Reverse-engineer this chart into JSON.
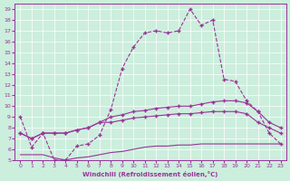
{
  "xlabel": "Windchill (Refroidissement éolien,°C)",
  "bg_color": "#cceedd",
  "line_color": "#993399",
  "xlim": [
    -0.5,
    23.5
  ],
  "ylim": [
    5,
    19.5
  ],
  "xticks": [
    0,
    1,
    2,
    3,
    4,
    5,
    6,
    7,
    8,
    9,
    10,
    11,
    12,
    13,
    14,
    15,
    16,
    17,
    18,
    19,
    20,
    21,
    22,
    23
  ],
  "yticks": [
    5,
    6,
    7,
    8,
    9,
    10,
    11,
    12,
    13,
    14,
    15,
    16,
    17,
    18,
    19
  ],
  "line_main_x": [
    0,
    1,
    2,
    3,
    4,
    5,
    6,
    7,
    8,
    9,
    10,
    11,
    12,
    13,
    14,
    15,
    16,
    17,
    18,
    19,
    20,
    21,
    22,
    23
  ],
  "line_main_y": [
    9.0,
    6.2,
    7.5,
    5.0,
    5.0,
    6.3,
    6.5,
    7.3,
    9.7,
    13.5,
    15.5,
    16.8,
    17.0,
    16.8,
    17.0,
    19.0,
    17.5,
    18.0,
    12.5,
    12.3,
    10.5,
    9.5,
    7.5,
    6.5
  ],
  "line_top_x": [
    0,
    1,
    2,
    3,
    4,
    5,
    6,
    7,
    8,
    9,
    10,
    11,
    12,
    13,
    14,
    15,
    16,
    17,
    18,
    19,
    20,
    21,
    22,
    23
  ],
  "line_top_y": [
    7.5,
    7.0,
    7.5,
    7.5,
    7.5,
    7.8,
    8.0,
    8.5,
    9.0,
    9.2,
    9.5,
    9.6,
    9.8,
    9.9,
    10.0,
    10.0,
    10.2,
    10.4,
    10.5,
    10.5,
    10.3,
    9.5,
    8.5,
    8.0
  ],
  "line_mid_x": [
    0,
    1,
    2,
    3,
    4,
    5,
    6,
    7,
    8,
    9,
    10,
    11,
    12,
    13,
    14,
    15,
    16,
    17,
    18,
    19,
    20,
    21,
    22,
    23
  ],
  "line_mid_y": [
    7.5,
    7.0,
    7.5,
    7.5,
    7.5,
    7.8,
    8.0,
    8.5,
    8.5,
    8.7,
    8.9,
    9.0,
    9.1,
    9.2,
    9.3,
    9.3,
    9.4,
    9.5,
    9.5,
    9.5,
    9.3,
    8.5,
    8.0,
    7.5
  ],
  "line_bot_x": [
    0,
    1,
    2,
    3,
    4,
    5,
    6,
    7,
    8,
    9,
    10,
    11,
    12,
    13,
    14,
    15,
    16,
    17,
    18,
    19,
    20,
    21,
    22,
    23
  ],
  "line_bot_y": [
    5.5,
    5.5,
    5.5,
    5.2,
    5.0,
    5.2,
    5.3,
    5.5,
    5.7,
    5.8,
    6.0,
    6.2,
    6.3,
    6.3,
    6.4,
    6.4,
    6.5,
    6.5,
    6.5,
    6.5,
    6.5,
    6.5,
    6.5,
    6.5
  ]
}
